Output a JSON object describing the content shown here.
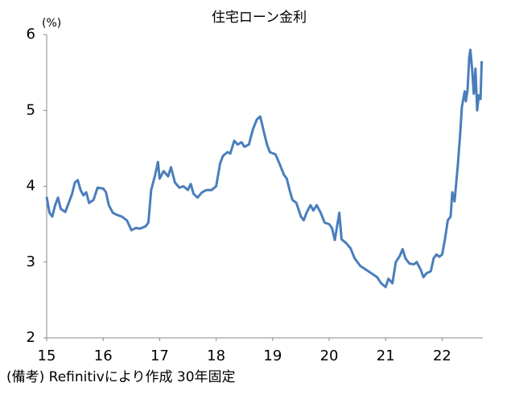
{
  "chart_data": {
    "type": "line",
    "title": "住宅ローン金利",
    "y_label": "(%)",
    "note": "(備考) Refinitivにより作成 30年固定",
    "x": [
      2015.0,
      2015.05,
      2015.1,
      2015.15,
      2015.2,
      2015.25,
      2015.33,
      2015.4,
      2015.45,
      2015.5,
      2015.55,
      2015.6,
      2015.65,
      2015.7,
      2015.75,
      2015.83,
      2015.9,
      2016.0,
      2016.05,
      2016.1,
      2016.17,
      2016.25,
      2016.33,
      2016.42,
      2016.5,
      2016.58,
      2016.65,
      2016.75,
      2016.8,
      2016.85,
      2016.92,
      2016.97,
      2017.0,
      2017.07,
      2017.15,
      2017.2,
      2017.27,
      2017.35,
      2017.42,
      2017.5,
      2017.55,
      2017.6,
      2017.67,
      2017.75,
      2017.83,
      2017.92,
      2018.0,
      2018.07,
      2018.12,
      2018.2,
      2018.25,
      2018.32,
      2018.38,
      2018.45,
      2018.5,
      2018.58,
      2018.65,
      2018.72,
      2018.78,
      2018.85,
      2018.9,
      2018.95,
      2019.05,
      2019.12,
      2019.2,
      2019.25,
      2019.3,
      2019.35,
      2019.42,
      2019.5,
      2019.55,
      2019.6,
      2019.67,
      2019.72,
      2019.78,
      2019.85,
      2019.92,
      2020.0,
      2020.05,
      2020.1,
      2020.18,
      2020.22,
      2020.3,
      2020.38,
      2020.45,
      2020.55,
      2020.65,
      2020.75,
      2020.85,
      2020.92,
      2021.0,
      2021.05,
      2021.12,
      2021.18,
      2021.25,
      2021.3,
      2021.35,
      2021.42,
      2021.5,
      2021.55,
      2021.62,
      2021.67,
      2021.72,
      2021.8,
      2021.85,
      2021.9,
      2021.95,
      2022.0,
      2022.05,
      2022.1,
      2022.15,
      2022.18,
      2022.22,
      2022.28,
      2022.32,
      2022.35,
      2022.4,
      2022.42,
      2022.45,
      2022.48,
      2022.5,
      2022.53,
      2022.56,
      2022.59,
      2022.62,
      2022.65,
      2022.68,
      2022.7
    ],
    "series": [
      {
        "color": "#4a7ebb",
        "values": [
          3.86,
          3.65,
          3.6,
          3.75,
          3.85,
          3.7,
          3.66,
          3.8,
          3.9,
          4.05,
          4.08,
          3.95,
          3.88,
          3.92,
          3.78,
          3.82,
          3.98,
          3.97,
          3.92,
          3.75,
          3.65,
          3.62,
          3.6,
          3.55,
          3.42,
          3.45,
          3.44,
          3.47,
          3.52,
          3.95,
          4.15,
          4.32,
          4.1,
          4.2,
          4.13,
          4.25,
          4.05,
          3.98,
          4.0,
          3.95,
          4.03,
          3.9,
          3.85,
          3.92,
          3.95,
          3.95,
          4.0,
          4.3,
          4.4,
          4.45,
          4.43,
          4.6,
          4.55,
          4.58,
          4.52,
          4.55,
          4.75,
          4.88,
          4.92,
          4.7,
          4.55,
          4.45,
          4.42,
          4.3,
          4.15,
          4.1,
          3.95,
          3.82,
          3.78,
          3.6,
          3.55,
          3.65,
          3.75,
          3.68,
          3.75,
          3.65,
          3.52,
          3.5,
          3.45,
          3.29,
          3.65,
          3.3,
          3.25,
          3.18,
          3.05,
          2.95,
          2.9,
          2.85,
          2.8,
          2.72,
          2.67,
          2.78,
          2.72,
          3.0,
          3.08,
          3.17,
          3.05,
          2.98,
          2.97,
          3.0,
          2.9,
          2.8,
          2.85,
          2.88,
          3.05,
          3.1,
          3.07,
          3.1,
          3.3,
          3.55,
          3.6,
          3.92,
          3.8,
          4.3,
          4.7,
          5.05,
          5.25,
          5.12,
          5.27,
          5.7,
          5.8,
          5.55,
          5.22,
          5.55,
          5.0,
          5.2,
          5.15,
          5.65
        ]
      }
    ],
    "xlim": [
      2015.0,
      2022.72
    ],
    "ylim": [
      2,
      6
    ],
    "xticks": [
      {
        "value": 2015,
        "label": "15"
      },
      {
        "value": 2016,
        "label": "16"
      },
      {
        "value": 2017,
        "label": "17"
      },
      {
        "value": 2018,
        "label": "18"
      },
      {
        "value": 2019,
        "label": "19"
      },
      {
        "value": 2020,
        "label": "20"
      },
      {
        "value": 2021,
        "label": "21"
      },
      {
        "value": 2022,
        "label": "22"
      }
    ],
    "yticks": [
      2,
      3,
      4,
      5,
      6
    ]
  }
}
